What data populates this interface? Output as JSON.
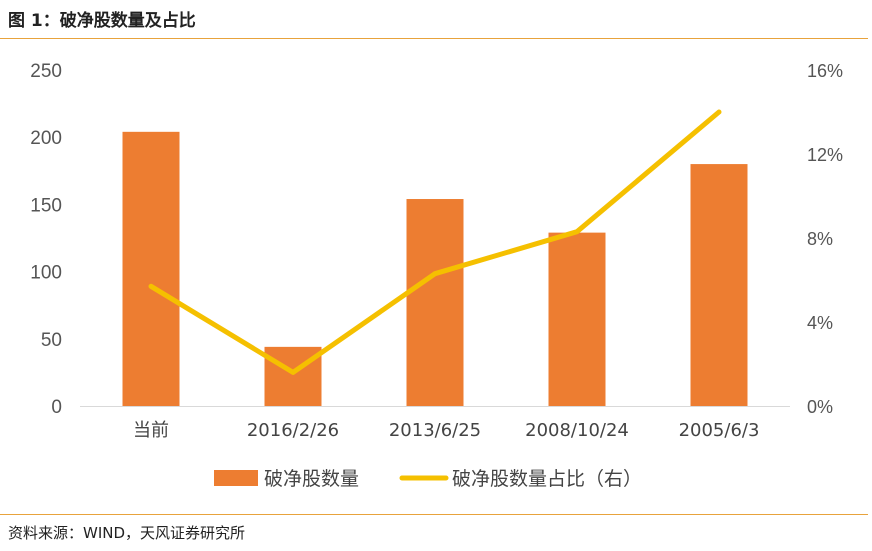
{
  "header": {
    "title": "图 1：破净股数量及占比"
  },
  "footer": {
    "source": "资料来源：WIND，天风证券研究所"
  },
  "colors": {
    "bar": "#ed7d31",
    "line": "#f5c000",
    "rule": "#e8a33c"
  },
  "chart_data": {
    "type": "bar",
    "categories": [
      "当前",
      "2016/2/26",
      "2013/6/25",
      "2008/10/24",
      "2005/6/3"
    ],
    "series": [
      {
        "name": "破净股数量",
        "type": "bar",
        "axis": "left",
        "values": [
          204,
          44,
          154,
          129,
          180
        ]
      },
      {
        "name": "破净股数量占比（右）",
        "type": "line",
        "axis": "right",
        "values": [
          5.7,
          1.6,
          6.3,
          8.3,
          14.0
        ]
      }
    ],
    "ylim": [
      0,
      250
    ],
    "y_ticks": [
      "0",
      "50",
      "100",
      "150",
      "200",
      "250"
    ],
    "y2lim": [
      0,
      16
    ],
    "y2_ticks": [
      "0%",
      "4%",
      "8%",
      "12%",
      "16%"
    ],
    "grid": false,
    "legend": "bottom"
  }
}
